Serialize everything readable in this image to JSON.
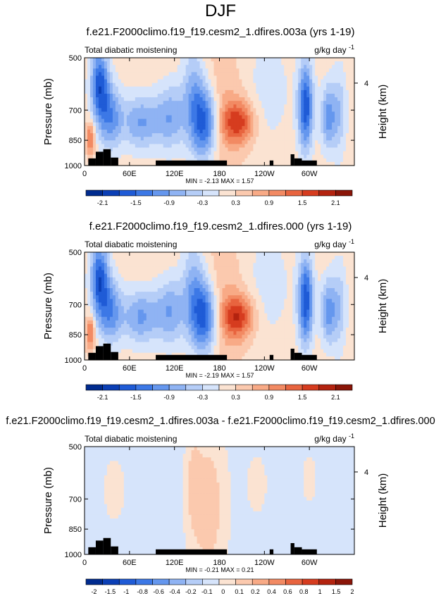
{
  "title": "DJF",
  "chart_data": [
    {
      "type": "heatmap",
      "title": "f.e21.F2000climo.f19_f19.cesm2_1.dfires.003a (yrs 1-19)",
      "subtitle_left": "Total diabatic moistening",
      "units": "g/kg day",
      "units_exp": "-1",
      "ylabel": "Pressure (mb)",
      "y2label": "Height (km)",
      "y_ticks": [
        "500",
        "700",
        "850",
        "1000"
      ],
      "y2_ticks": [
        "4"
      ],
      "x_ticks": [
        "0",
        "60E",
        "120E",
        "180",
        "120W",
        "60W"
      ],
      "stats": "MIN = -2.13   MAX =  1.57",
      "colorbar_labels": [
        "-2.1",
        "-1.5",
        "-0.9",
        "-0.3",
        "0.3",
        "0.9",
        "1.5",
        "2.1"
      ]
    },
    {
      "type": "heatmap",
      "title": "f.e21.F2000climo.f19_f19.cesm2_1.dfires.000 (yrs 1-19)",
      "subtitle_left": "Total diabatic moistening",
      "units": "g/kg day",
      "units_exp": "-1",
      "ylabel": "Pressure (mb)",
      "y2label": "Height (km)",
      "y_ticks": [
        "500",
        "700",
        "850",
        "1000"
      ],
      "y2_ticks": [
        "4"
      ],
      "x_ticks": [
        "0",
        "60E",
        "120E",
        "180",
        "120W",
        "60W"
      ],
      "stats": "MIN = -2.19   MAX =  1.57",
      "colorbar_labels": [
        "-2.1",
        "-1.5",
        "-0.9",
        "-0.3",
        "0.3",
        "0.9",
        "1.5",
        "2.1"
      ]
    },
    {
      "type": "heatmap",
      "title": "f.e21.F2000climo.f19_f19.cesm2_1.dfires.003a - f.e21.F2000climo.f19_f19.cesm2_1.dfires.000",
      "subtitle_left": "Total diabatic moistening",
      "units": "g/kg day",
      "units_exp": "-1",
      "ylabel": "Pressure (mb)",
      "y2label": "Height (km)",
      "y_ticks": [
        "500",
        "700",
        "850",
        "1000"
      ],
      "y2_ticks": [
        "4"
      ],
      "x_ticks": [
        "0",
        "60E",
        "120E",
        "180",
        "120W",
        "60W"
      ],
      "stats": "MIN = -0.21   MAX =  0.21",
      "colorbar_labels": [
        "-2",
        "-1.5",
        "-1",
        "-0.8",
        "-0.6",
        "-0.4",
        "-0.2",
        "-0.1",
        "0",
        "0.1",
        "0.2",
        "0.4",
        "0.6",
        "0.8",
        "1",
        "1.5",
        "2"
      ]
    }
  ],
  "colorbar_colors": [
    "#002b8f",
    "#0b3fb5",
    "#1f5bd6",
    "#3c78e6",
    "#6597ee",
    "#8fb3f3",
    "#b5cdf7",
    "#d6e4fb",
    "#fbe3d2",
    "#fbc9ae",
    "#f8aa86",
    "#f28a63",
    "#e8643f",
    "#d63c1f",
    "#b3230f",
    "#8a1508"
  ]
}
